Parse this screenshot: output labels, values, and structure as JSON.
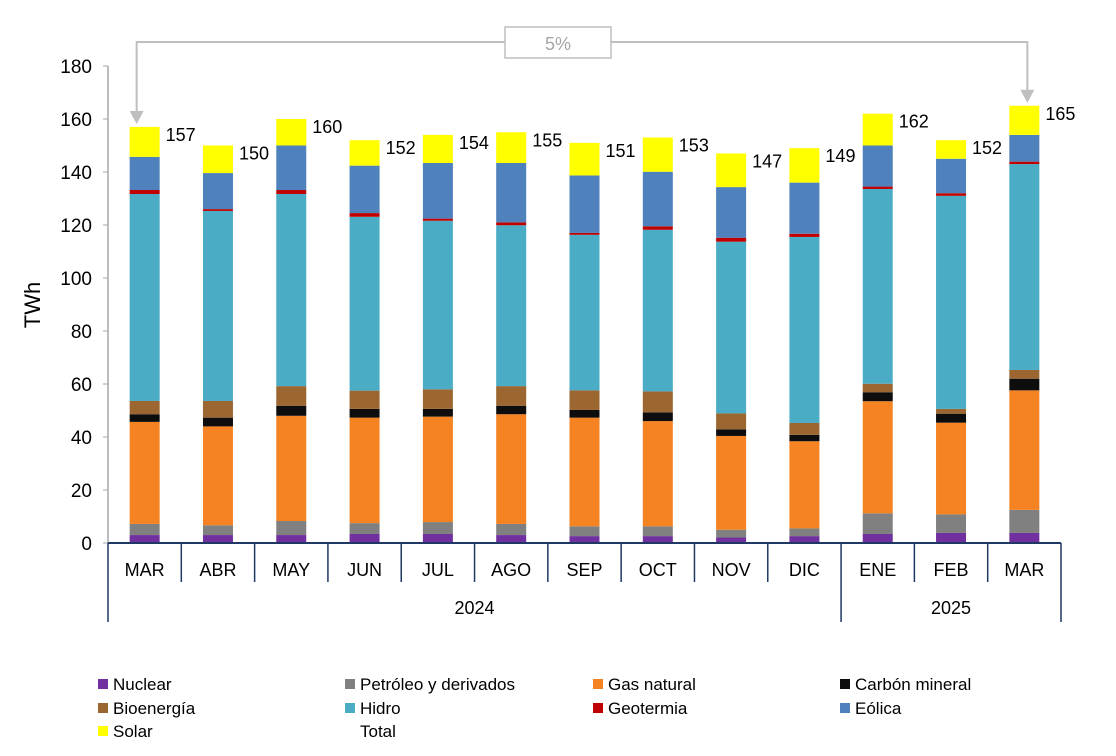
{
  "chart_data": {
    "type": "stacked-bar",
    "ylabel": "TWh",
    "ylim": [
      0,
      180
    ],
    "yticks": [
      0,
      20,
      40,
      60,
      80,
      100,
      120,
      140,
      160,
      180
    ],
    "grid": false,
    "legend_position": "bottom",
    "categories": [
      "MAR",
      "ABR",
      "MAY",
      "JUN",
      "JUL",
      "AGO",
      "SEP",
      "OCT",
      "NOV",
      "DIC",
      "ENE",
      "FEB",
      "MAR"
    ],
    "year_groups": [
      {
        "label": "2024",
        "count": 10
      },
      {
        "label": "2025",
        "count": 3
      }
    ],
    "series": [
      {
        "name": "Nuclear",
        "color": "#7030a0",
        "values": [
          3.0,
          3.0,
          3.0,
          3.4,
          3.4,
          3.0,
          2.6,
          2.6,
          2.1,
          2.6,
          3.4,
          3.8,
          3.8
        ]
      },
      {
        "name": "Petróleo y derivados",
        "color": "#808080",
        "values": [
          4.2,
          3.7,
          5.3,
          4.1,
          4.5,
          4.2,
          3.7,
          3.7,
          2.9,
          2.9,
          7.8,
          7.0,
          8.7
        ]
      },
      {
        "name": "Gas natural",
        "color": "#f58322",
        "values": [
          38.5,
          37.3,
          39.7,
          39.8,
          39.8,
          41.4,
          41.0,
          39.7,
          35.4,
          32.9,
          42.3,
          34.6,
          45.1
        ]
      },
      {
        "name": "Carbón mineral",
        "color": "#0d0d0d",
        "values": [
          2.9,
          3.3,
          3.8,
          3.3,
          2.9,
          3.2,
          2.9,
          3.3,
          2.5,
          2.4,
          3.4,
          3.4,
          4.4
        ]
      },
      {
        "name": "Bioenergía",
        "color": "#9c6631",
        "values": [
          5.0,
          6.3,
          7.4,
          6.9,
          7.4,
          7.4,
          7.4,
          7.9,
          6.0,
          4.5,
          3.2,
          1.8,
          3.3
        ]
      },
      {
        "name": "Hidro",
        "color": "#4aacc5",
        "values": [
          78.1,
          71.7,
          72.5,
          65.6,
          63.6,
          60.7,
          58.7,
          61.0,
          64.8,
          70.2,
          73.5,
          80.4,
          77.7
        ]
      },
      {
        "name": "Geotermia",
        "color": "#c00000",
        "values": [
          1.5,
          0.7,
          1.5,
          1.4,
          0.8,
          1.1,
          0.7,
          1.3,
          1.5,
          1.2,
          0.9,
          1.0,
          0.9
        ]
      },
      {
        "name": "Eólica",
        "color": "#4f81bd",
        "values": [
          12.5,
          13.6,
          16.8,
          17.9,
          21.0,
          22.4,
          21.7,
          20.6,
          19.1,
          19.3,
          15.5,
          13.0,
          10.1
        ]
      },
      {
        "name": "Solar",
        "color": "#ffff00",
        "values": [
          11.3,
          10.4,
          10.0,
          9.6,
          10.6,
          11.6,
          12.3,
          12.9,
          12.7,
          13.0,
          12.0,
          7.0,
          11.0
        ]
      }
    ],
    "total": {
      "name": "Total",
      "values": [
        157,
        150,
        160,
        152,
        154,
        155,
        151,
        153,
        147,
        149,
        162,
        152,
        165
      ]
    },
    "annotation": {
      "text": "5%",
      "from_index": 0,
      "to_index": 12,
      "color": "#bfbfbf"
    }
  }
}
